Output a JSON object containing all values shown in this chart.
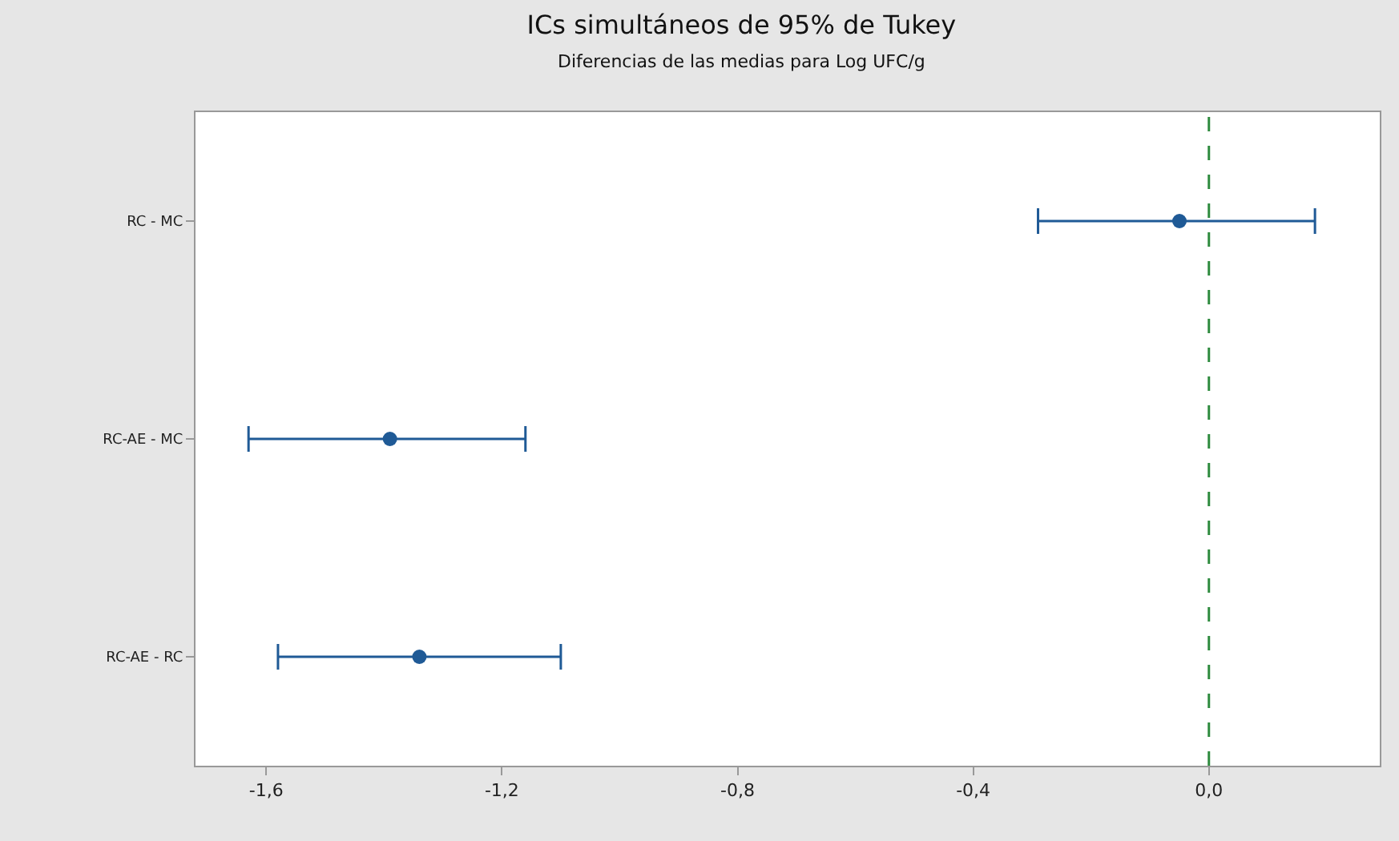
{
  "chart_data": {
    "type": "scatter",
    "orientation": "horizontal",
    "title": "ICs simultáneos de 95% de Tukey",
    "subtitle": "Diferencias de las medias para Log UFC/g",
    "categories": [
      "RC - MC",
      "RC-AE - MC",
      "RC-AE - RC"
    ],
    "series": [
      {
        "color": "#1f5a96",
        "values": [
          -0.05,
          -1.39,
          -1.34
        ],
        "errors": [
          [
            -0.29,
            0.18
          ],
          [
            -1.63,
            -1.16
          ],
          [
            -1.58,
            -1.1
          ]
        ]
      }
    ],
    "xlim": [
      -1.72,
      0.29
    ],
    "xticks": [
      {
        "value": -1.6,
        "label": "-1,6"
      },
      {
        "value": -1.2,
        "label": "-1,2"
      },
      {
        "value": -0.8,
        "label": "-0,8"
      },
      {
        "value": -0.4,
        "label": "-0,4"
      },
      {
        "value": 0,
        "label": "0,0"
      }
    ],
    "ref_lines": [
      {
        "axis": "x",
        "value": 0,
        "color": "#2e8b3e",
        "line_style": "dashed"
      }
    ],
    "marker": "circle"
  }
}
